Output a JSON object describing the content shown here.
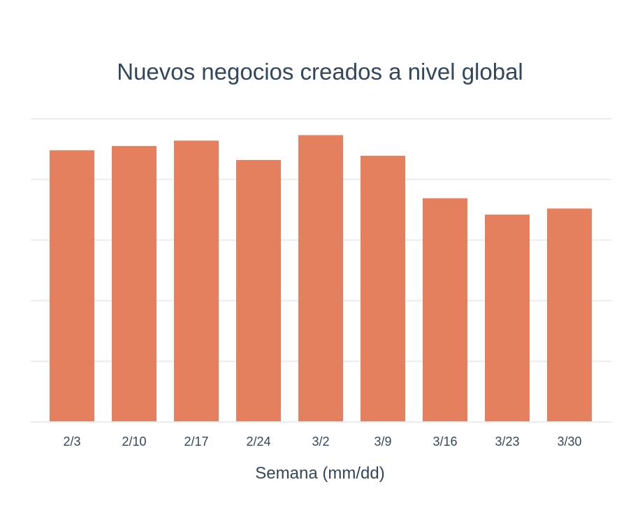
{
  "chart_data": {
    "type": "bar",
    "title": "Nuevos negocios creados a nivel global",
    "xlabel": "Semana (mm/dd)",
    "ylabel": "",
    "categories": [
      "2/3",
      "2/10",
      "2/17",
      "2/24",
      "3/2",
      "3/9",
      "3/16",
      "3/23",
      "3/30"
    ],
    "values": [
      4.48,
      4.55,
      4.64,
      4.32,
      4.73,
      4.39,
      3.69,
      3.42,
      3.52
    ],
    "ylim": [
      0,
      5
    ],
    "grid": true,
    "y_tick_labels_shown": false,
    "bar_color": "#e5805f",
    "grid_color": "#eaecef"
  }
}
